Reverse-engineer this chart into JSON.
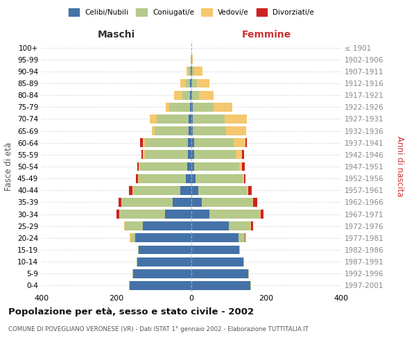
{
  "age_groups": [
    "100+",
    "95-99",
    "90-94",
    "85-89",
    "80-84",
    "75-79",
    "70-74",
    "65-69",
    "60-64",
    "55-59",
    "50-54",
    "45-49",
    "40-44",
    "35-39",
    "30-34",
    "25-29",
    "20-24",
    "15-19",
    "10-14",
    "5-9",
    "0-4"
  ],
  "birth_years": [
    "≤ 1901",
    "1902-1906",
    "1907-1911",
    "1912-1916",
    "1917-1921",
    "1922-1926",
    "1927-1931",
    "1932-1936",
    "1937-1941",
    "1942-1946",
    "1947-1951",
    "1952-1956",
    "1957-1961",
    "1962-1966",
    "1967-1971",
    "1972-1976",
    "1977-1981",
    "1982-1986",
    "1987-1991",
    "1992-1996",
    "1997-2001"
  ],
  "maschi": {
    "celibi": [
      0,
      0,
      2,
      3,
      3,
      4,
      8,
      8,
      10,
      10,
      12,
      15,
      30,
      50,
      70,
      130,
      150,
      140,
      145,
      155,
      165
    ],
    "coniugati": [
      0,
      1,
      6,
      12,
      22,
      55,
      85,
      90,
      115,
      115,
      125,
      125,
      125,
      135,
      120,
      48,
      12,
      2,
      2,
      2,
      2
    ],
    "vedovi": [
      0,
      1,
      5,
      15,
      22,
      10,
      18,
      8,
      4,
      4,
      4,
      2,
      2,
      2,
      2,
      2,
      2,
      0,
      0,
      0,
      0
    ],
    "divorziati": [
      0,
      0,
      0,
      0,
      0,
      0,
      0,
      0,
      8,
      5,
      4,
      7,
      10,
      7,
      8,
      0,
      0,
      0,
      0,
      0,
      0
    ]
  },
  "femmine": {
    "nubili": [
      0,
      0,
      1,
      2,
      2,
      4,
      4,
      4,
      8,
      8,
      8,
      12,
      18,
      28,
      48,
      100,
      125,
      128,
      138,
      152,
      158
    ],
    "coniugate": [
      0,
      1,
      6,
      12,
      18,
      55,
      85,
      88,
      105,
      110,
      120,
      125,
      130,
      135,
      135,
      58,
      18,
      2,
      2,
      2,
      2
    ],
    "vedove": [
      0,
      2,
      22,
      35,
      40,
      50,
      60,
      55,
      32,
      18,
      8,
      4,
      4,
      2,
      2,
      2,
      0,
      0,
      0,
      0,
      0
    ],
    "divorziate": [
      0,
      0,
      0,
      0,
      0,
      0,
      0,
      0,
      4,
      4,
      7,
      4,
      10,
      10,
      7,
      4,
      2,
      0,
      0,
      0,
      0
    ]
  },
  "colors": {
    "celibi": "#4472a8",
    "coniugati": "#b5c98a",
    "vedovi": "#f5c76e",
    "divorziati": "#cc2222"
  },
  "xlim": 400,
  "title": "Popolazione per età, sesso e stato civile - 2002",
  "subtitle": "COMUNE DI POVEGLIANO VERONESE (VR) - Dati ISTAT 1° gennaio 2002 - Elaborazione TUTTITALIA.IT",
  "label_maschi": "Maschi",
  "label_femmine": "Femmine",
  "ylabel_left": "Fasce di età",
  "ylabel_right": "Anni di nascita",
  "legend_labels": [
    "Celibi/Nubili",
    "Coniugati/e",
    "Vedovi/e",
    "Divorziati/e"
  ],
  "bg_color": "#ffffff",
  "grid_color": "#cccccc"
}
